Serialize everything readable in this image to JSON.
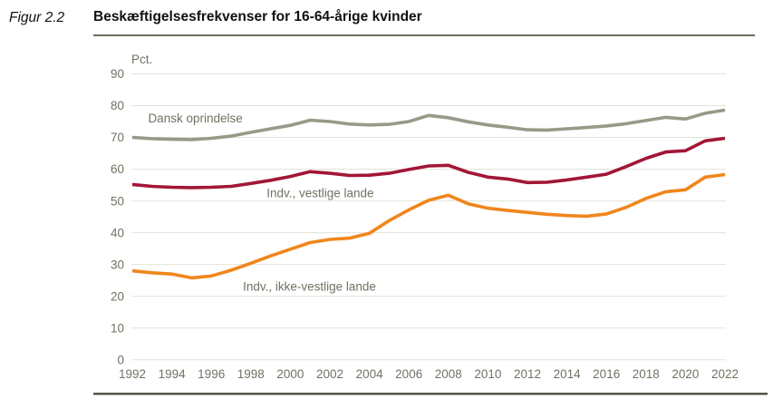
{
  "figure": {
    "label": "Figur 2.2",
    "title": "Beskæftigelsesfrekvenser for 16-64-årige kvinder"
  },
  "chart_data": {
    "type": "line",
    "title": "Beskæftigelsesfrekvenser for 16-64-årige kvinder",
    "unit_label": "Pct.",
    "xlabel": "",
    "ylabel": "Pct.",
    "xlim": [
      1992,
      2022
    ],
    "ylim": [
      0,
      90
    ],
    "grid": true,
    "legend_position": "inline-annotations",
    "x": [
      1992,
      1993,
      1994,
      1995,
      1996,
      1997,
      1998,
      1999,
      2000,
      2001,
      2002,
      2003,
      2004,
      2005,
      2006,
      2007,
      2008,
      2009,
      2010,
      2011,
      2012,
      2013,
      2014,
      2015,
      2016,
      2017,
      2018,
      2019,
      2020,
      2021,
      2022
    ],
    "x_ticks": [
      1992,
      1994,
      1996,
      1998,
      2000,
      2002,
      2004,
      2006,
      2008,
      2010,
      2012,
      2014,
      2016,
      2018,
      2020,
      2022
    ],
    "y_ticks": [
      0,
      10,
      20,
      30,
      40,
      50,
      60,
      70,
      80,
      90
    ],
    "series": [
      {
        "name": "Dansk oprindelse",
        "color": "#9a9887",
        "values": [
          70.0,
          69.6,
          69.4,
          69.3,
          69.7,
          70.4,
          71.6,
          72.7,
          73.8,
          75.4,
          75.0,
          74.2,
          73.9,
          74.1,
          75.0,
          76.9,
          76.2,
          74.9,
          73.9,
          73.2,
          72.4,
          72.3,
          72.7,
          73.1,
          73.6,
          74.3,
          75.3,
          76.3,
          75.8,
          77.6,
          78.6
        ]
      },
      {
        "name": "Indv., vestlige lande",
        "color": "#a21636",
        "values": [
          55.2,
          54.6,
          54.3,
          54.2,
          54.3,
          54.6,
          55.5,
          56.5,
          57.7,
          59.2,
          58.7,
          58.0,
          58.1,
          58.7,
          59.9,
          61.0,
          61.2,
          59.0,
          57.5,
          56.9,
          55.8,
          55.9,
          56.6,
          57.5,
          58.4,
          60.8,
          63.4,
          65.4,
          65.8,
          68.9,
          69.7
        ]
      },
      {
        "name": "Indv., ikke-vestlige lande",
        "color": "#f0861c",
        "values": [
          28.0,
          27.4,
          27.0,
          25.8,
          26.4,
          28.2,
          30.4,
          32.7,
          34.8,
          36.9,
          37.9,
          38.3,
          39.8,
          43.8,
          47.2,
          50.2,
          51.8,
          49.1,
          47.7,
          47.0,
          46.4,
          45.8,
          45.4,
          45.2,
          45.9,
          48.0,
          50.8,
          52.9,
          53.5,
          57.5,
          58.3
        ]
      }
    ],
    "annotations": [
      {
        "text": "Dansk oprindelse",
        "x": 1992.8,
        "y": 74.7
      },
      {
        "text": "Indv., vestlige lande",
        "x": 1998.8,
        "y": 51.2
      },
      {
        "text": "Indv., ikke-vestlige lande",
        "x": 1997.6,
        "y": 21.8
      }
    ]
  },
  "colors": {
    "title_rule": "#6e6d5c",
    "bottom_rule": "#55544a",
    "gridline": "#e3e2d9",
    "axis_text": "#727163",
    "title_text": "#111111"
  }
}
